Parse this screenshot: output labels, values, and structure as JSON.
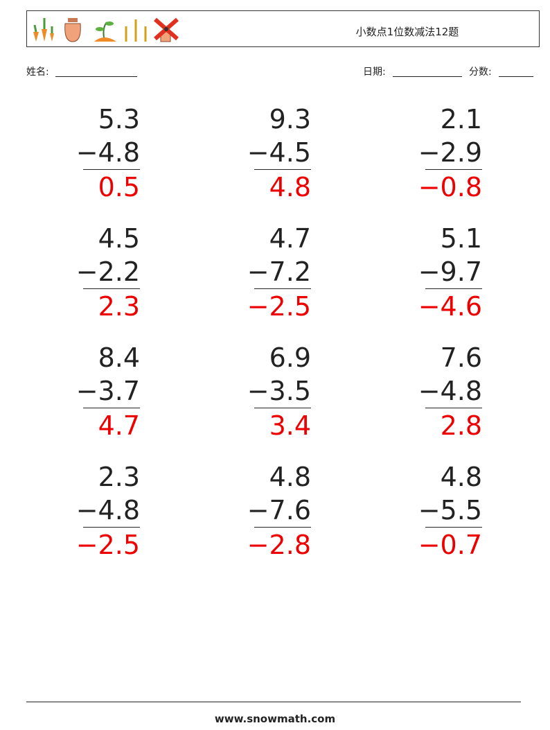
{
  "header": {
    "title": "小数点1位数减法12题"
  },
  "fields": {
    "name": "姓名:",
    "date": "日期:",
    "score": "分数:"
  },
  "problems": [
    {
      "top": "5.3",
      "bottom": "−4.8",
      "answer": "0.5"
    },
    {
      "top": "9.3",
      "bottom": "−4.5",
      "answer": "4.8"
    },
    {
      "top": "2.1",
      "bottom": "−2.9",
      "answer": "−0.8"
    },
    {
      "top": "4.5",
      "bottom": "−2.2",
      "answer": "2.3"
    },
    {
      "top": "4.7",
      "bottom": "−7.2",
      "answer": "−2.5"
    },
    {
      "top": "5.1",
      "bottom": "−9.7",
      "answer": "−4.6"
    },
    {
      "top": "8.4",
      "bottom": "−3.7",
      "answer": "4.7"
    },
    {
      "top": "6.9",
      "bottom": "−3.5",
      "answer": "3.4"
    },
    {
      "top": "7.6",
      "bottom": "−4.8",
      "answer": "2.8"
    },
    {
      "top": "2.3",
      "bottom": "−4.8",
      "answer": "−2.5"
    },
    {
      "top": "4.8",
      "bottom": "−7.6",
      "answer": "−2.8"
    },
    {
      "top": "4.8",
      "bottom": "−5.5",
      "answer": "−0.7"
    }
  ],
  "footer": {
    "site": "www.snowmath.com"
  }
}
